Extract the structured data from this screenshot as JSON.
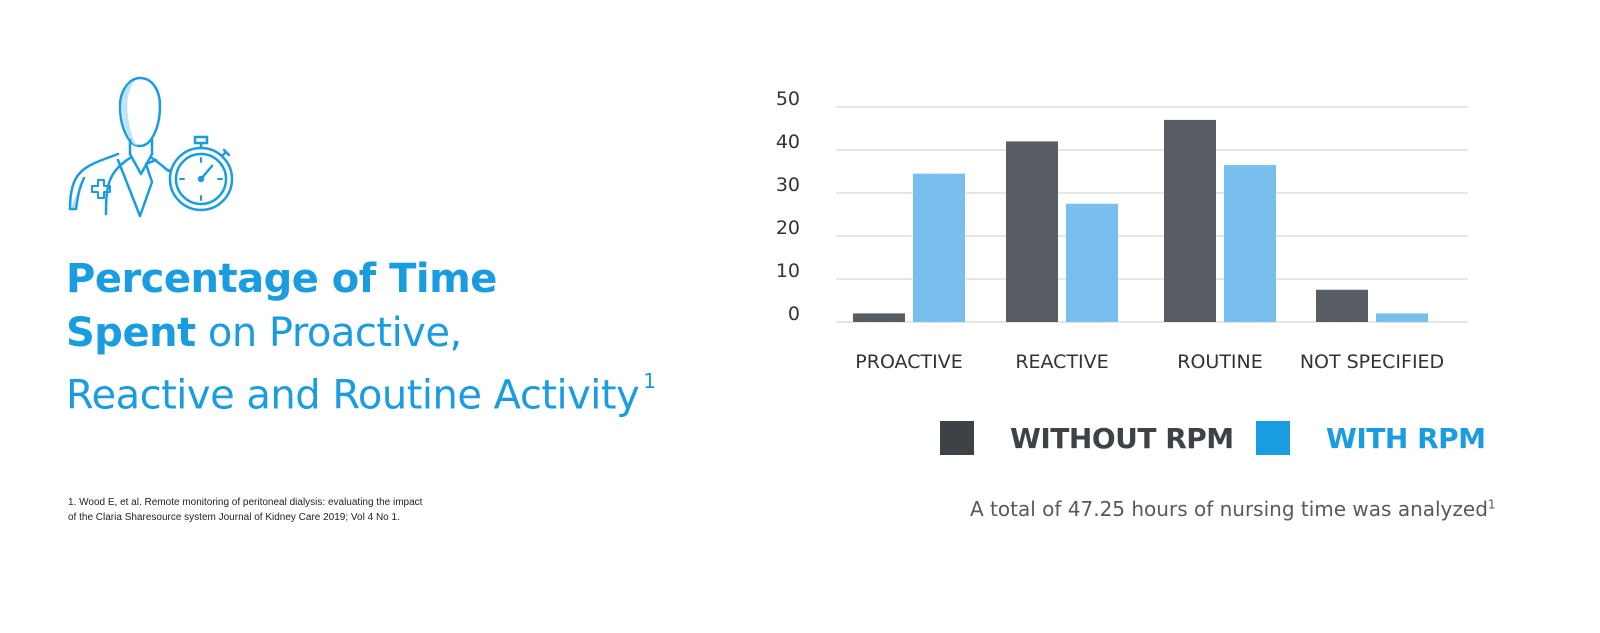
{
  "title": {
    "line1_bold": "Percentage of Time",
    "line2_bold": "Spent",
    "line2_regular": " on Proactive,",
    "line3": "Reactive and Routine Activity",
    "footnote_marker": "1"
  },
  "footnote": {
    "line1": "1. Wood E, et al. Remote monitoring of peritoneal dialysis: evaluating the impact",
    "line2": "of the Claria Sharesource system Journal of Kidney Care 2019; Vol 4 No 1."
  },
  "note": {
    "text": "A total of 47.25 hours of nursing time was analyzed",
    "marker": "1"
  },
  "colors": {
    "accent": "#1a9ce0",
    "without_rpm": "#575d63",
    "with_rpm": "#78bfee",
    "legend_without": "#3d4247",
    "legend_with": "#1a9ce0",
    "grid": "#c8ccd0",
    "axis_text": "#333333"
  },
  "icons": [
    "clinician-icon",
    "stopwatch-icon"
  ],
  "chart_data": {
    "type": "bar",
    "categories": [
      "PROACTIVE",
      "REACTIVE",
      "ROUTINE",
      "NOT SPECIFIED"
    ],
    "series": [
      {
        "name": "WITHOUT RPM",
        "values": [
          2,
          42,
          47,
          7.5
        ]
      },
      {
        "name": "WITH RPM",
        "values": [
          34.5,
          27.5,
          36.5,
          2
        ]
      }
    ],
    "yticks": [
      0,
      10,
      20,
      30,
      40,
      50
    ],
    "ylim": [
      0,
      50
    ],
    "grid": true,
    "legend": "bottom-right"
  }
}
